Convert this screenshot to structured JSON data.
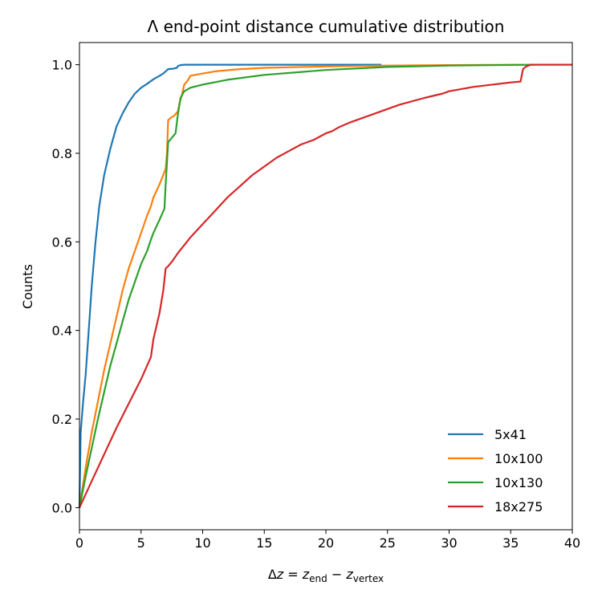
{
  "chart_data": {
    "type": "line",
    "title": "Λ end-point distance cumulative distribution",
    "xlabel": "Δz = z_end − z_vertex",
    "xlabel_parts": {
      "delta": "Δ",
      "z": "z",
      "eq": " = ",
      "sub_end": "end",
      "minus": " − ",
      "sub_vertex": "vertex"
    },
    "ylabel": "Counts",
    "xlim": [
      0,
      40
    ],
    "ylim": [
      -0.05,
      1.05
    ],
    "xticks": [
      "0",
      "5",
      "10",
      "15",
      "20",
      "25",
      "30",
      "35",
      "40"
    ],
    "yticks": [
      "0.0",
      "0.2",
      "0.4",
      "0.6",
      "0.8",
      "1.0"
    ],
    "grid": false,
    "legend_position": "lower-right",
    "series": [
      {
        "name": "5x41",
        "color": "#1f77b4",
        "x": [
          0,
          0.1,
          0.3,
          0.5,
          0.8,
          1.0,
          1.3,
          1.6,
          2.0,
          2.5,
          3.0,
          3.5,
          4.0,
          4.5,
          5.0,
          5.5,
          6.0,
          6.5,
          6.8,
          7.0,
          7.2,
          7.6,
          7.9,
          8.0,
          8.2,
          8.5,
          9.0,
          10,
          12,
          15,
          20,
          24.5
        ],
        "y": [
          0,
          0.17,
          0.24,
          0.3,
          0.42,
          0.5,
          0.6,
          0.68,
          0.75,
          0.81,
          0.86,
          0.89,
          0.915,
          0.935,
          0.948,
          0.957,
          0.967,
          0.975,
          0.98,
          0.985,
          0.99,
          0.991,
          0.993,
          0.997,
          0.999,
          1.0,
          1.0,
          1.0,
          1.0,
          1.0,
          1.0,
          1.0
        ]
      },
      {
        "name": "10x100",
        "color": "#ff7f0e",
        "x": [
          0,
          0.5,
          1.0,
          1.5,
          2.0,
          2.5,
          3.0,
          3.5,
          4.0,
          4.5,
          5.0,
          5.5,
          5.8,
          6.0,
          6.5,
          7.0,
          7.1,
          7.2,
          7.4,
          7.7,
          8.0,
          8.1,
          8.3,
          8.5,
          8.8,
          9.0,
          10,
          11,
          13,
          15,
          20,
          25,
          30,
          36
        ],
        "y": [
          0,
          0.09,
          0.17,
          0.24,
          0.31,
          0.37,
          0.43,
          0.49,
          0.54,
          0.58,
          0.62,
          0.66,
          0.68,
          0.7,
          0.73,
          0.765,
          0.8,
          0.875,
          0.88,
          0.885,
          0.895,
          0.91,
          0.93,
          0.955,
          0.965,
          0.975,
          0.98,
          0.985,
          0.99,
          0.993,
          0.996,
          0.998,
          0.999,
          1.0
        ]
      },
      {
        "name": "10x130",
        "color": "#2ca02c",
        "x": [
          0,
          0.5,
          1.0,
          1.5,
          2.0,
          2.5,
          3.0,
          3.5,
          4.0,
          4.5,
          5.0,
          5.5,
          5.8,
          6.0,
          6.5,
          6.9,
          7.0,
          7.2,
          7.5,
          7.8,
          8.0,
          8.2,
          8.5,
          9.0,
          10,
          12,
          15,
          20,
          25,
          30,
          37
        ],
        "y": [
          0,
          0.07,
          0.135,
          0.2,
          0.26,
          0.32,
          0.37,
          0.42,
          0.47,
          0.51,
          0.55,
          0.58,
          0.605,
          0.62,
          0.65,
          0.675,
          0.73,
          0.825,
          0.835,
          0.845,
          0.89,
          0.925,
          0.94,
          0.948,
          0.955,
          0.966,
          0.977,
          0.988,
          0.995,
          0.998,
          1.0
        ]
      },
      {
        "name": "18x275",
        "color": "#d62728",
        "x": [
          0,
          1,
          2,
          3,
          4,
          5,
          5.8,
          6.0,
          6.5,
          6.8,
          7.0,
          7.2,
          7.5,
          8,
          9,
          10,
          11,
          12,
          13,
          14,
          15,
          16,
          17,
          18,
          19,
          20,
          20.5,
          21,
          22,
          24,
          26,
          28,
          29.5,
          30,
          32,
          35,
          35.8,
          36.0,
          36.2,
          36.6,
          37,
          38,
          40
        ],
        "y": [
          0,
          0.06,
          0.12,
          0.18,
          0.235,
          0.29,
          0.34,
          0.38,
          0.44,
          0.49,
          0.54,
          0.545,
          0.555,
          0.575,
          0.61,
          0.64,
          0.67,
          0.7,
          0.725,
          0.75,
          0.77,
          0.79,
          0.805,
          0.82,
          0.83,
          0.845,
          0.85,
          0.858,
          0.87,
          0.89,
          0.91,
          0.925,
          0.935,
          0.94,
          0.95,
          0.96,
          0.962,
          0.99,
          0.995,
          1.0,
          1.0,
          1.0,
          1.0
        ]
      }
    ]
  }
}
